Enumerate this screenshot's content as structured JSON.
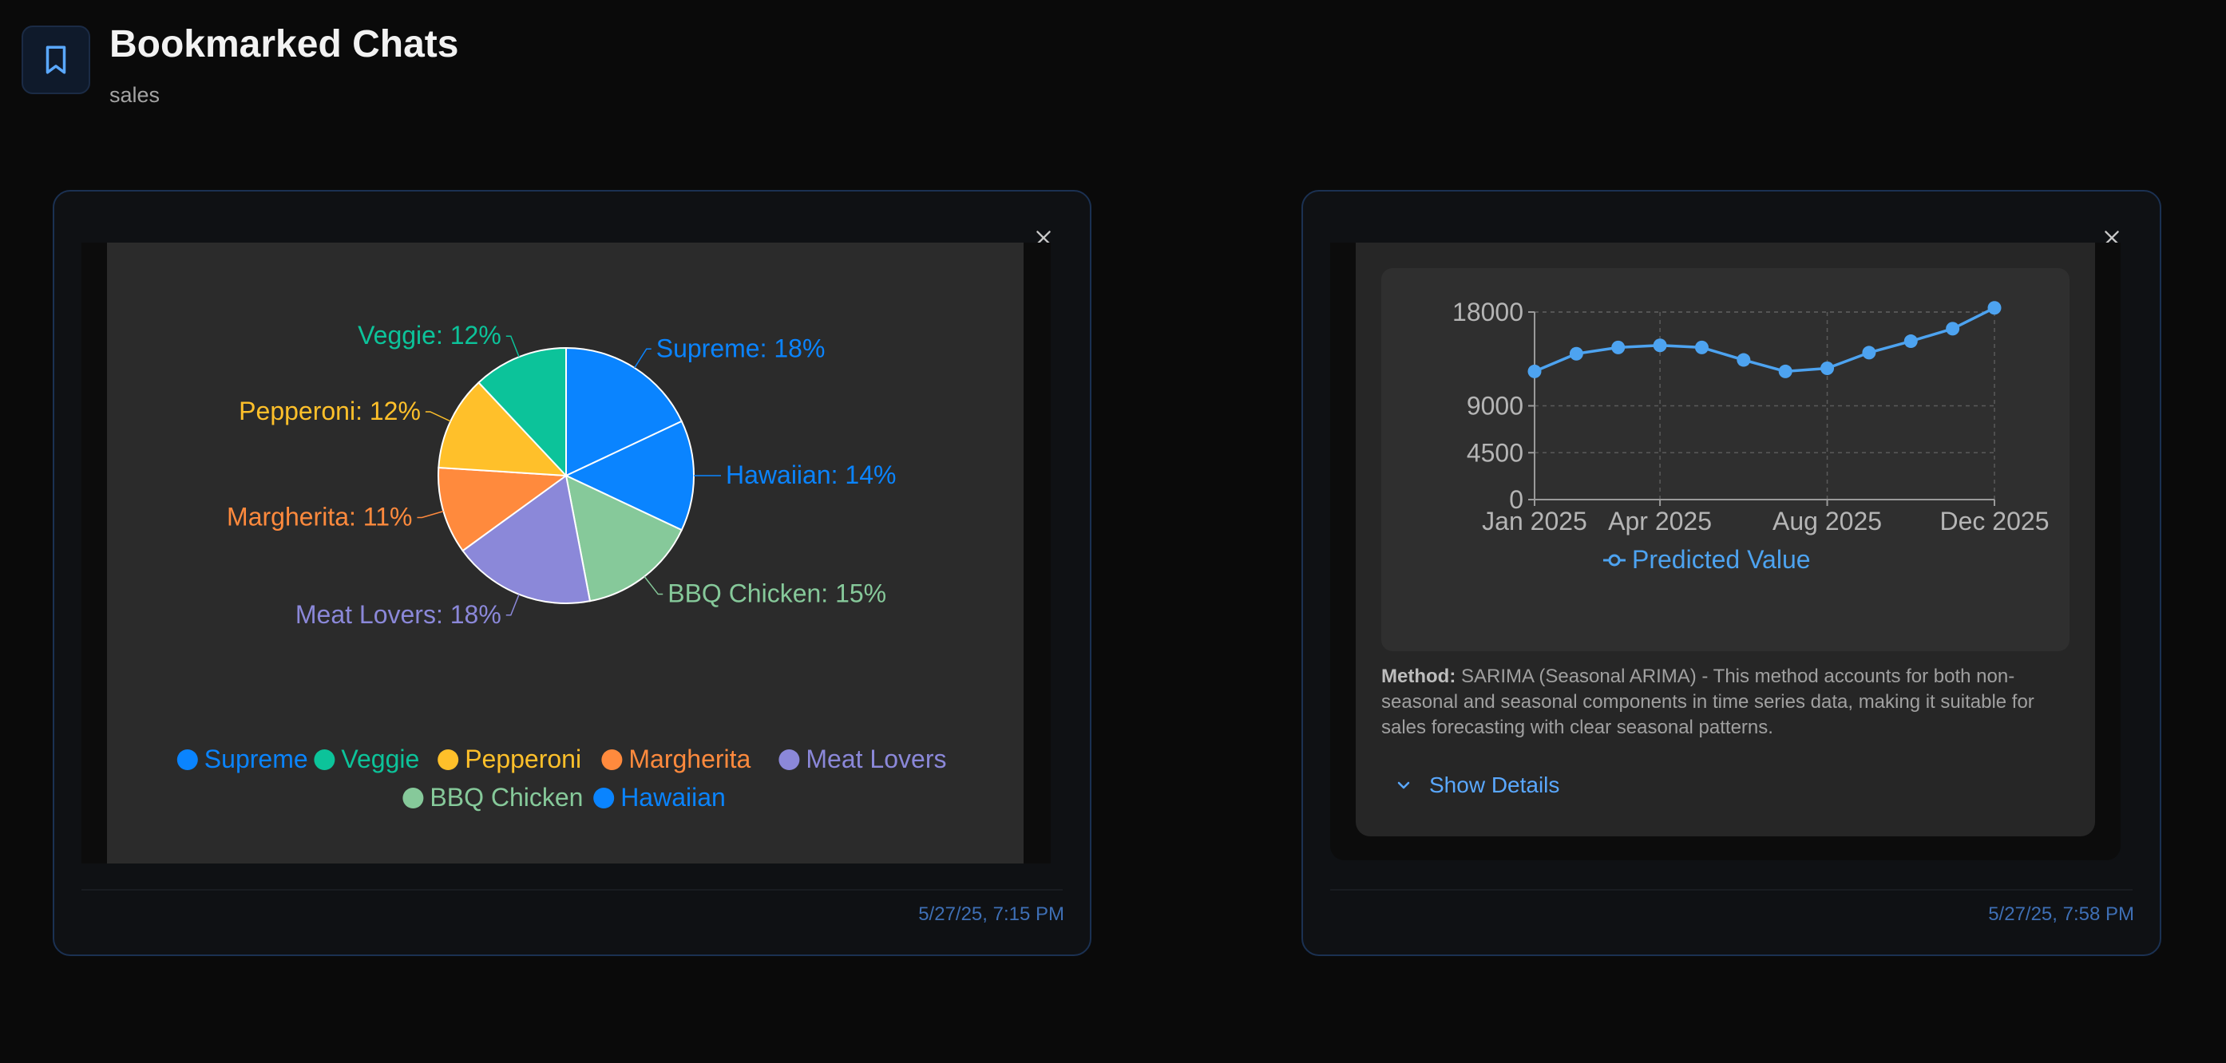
{
  "header": {
    "title": "Bookmarked Chats",
    "subtitle": "sales",
    "icon": "bookmark-icon"
  },
  "cards": [
    {
      "timestamp": "5/27/25, 7:15 PM",
      "chart_data": {
        "type": "pie",
        "slices": [
          {
            "name": "Supreme",
            "value": 18,
            "label": "Supreme: 18%",
            "color": "#0a84ff"
          },
          {
            "name": "Hawaiian",
            "value": 14,
            "label": "Hawaiian: 14%",
            "color": "#0a84ff"
          },
          {
            "name": "BBQ Chicken",
            "value": 15,
            "label": "BBQ Chicken: 15%",
            "color": "#86c99a"
          },
          {
            "name": "Meat Lovers",
            "value": 18,
            "label": "Meat Lovers: 18%",
            "color": "#8b88d9"
          },
          {
            "name": "Margherita",
            "value": 11,
            "label": "Margherita: 11%",
            "color": "#ff8a3d"
          },
          {
            "name": "Pepperoni",
            "value": 12,
            "label": "Pepperoni: 12%",
            "color": "#ffc02a"
          },
          {
            "name": "Veggie",
            "value": 12,
            "label": "Veggie: 12%",
            "color": "#0cc39a"
          }
        ],
        "legend": [
          "Supreme",
          "Veggie",
          "Pepperoni",
          "Margherita",
          "Meat Lovers",
          "BBQ Chicken",
          "Hawaiian"
        ],
        "legend_placement": "bottom"
      }
    },
    {
      "timestamp": "5/27/25, 7:58 PM",
      "chart_data": {
        "type": "line",
        "x": [
          "2025-01",
          "2025-02",
          "2025-03",
          "2025-04",
          "2025-05",
          "2025-06",
          "2025-07",
          "2025-08",
          "2025-09",
          "2025-10",
          "2025-11",
          "2025-12"
        ],
        "x_ticks": [
          "Jan 2025",
          "Apr 2025",
          "Aug 2025",
          "Dec 2025"
        ],
        "y_ticks": [
          "0",
          "4500",
          "9000",
          "18000"
        ],
        "ylim": [
          0,
          18000
        ],
        "series": [
          {
            "name": "Predicted Value",
            "color": "#4da3f0",
            "values": [
              12300,
              14000,
              14600,
              14800,
              14600,
              13400,
              12300,
              12600,
              14100,
              15200,
              16400,
              18400
            ]
          }
        ],
        "grid": true,
        "legend_placement": "bottom"
      },
      "method_label": "Method:",
      "method_text": "SARIMA (Seasonal ARIMA) - This method accounts for both non-seasonal and seasonal components in time series data, making it suitable for sales forecasting with clear seasonal patterns.",
      "show_details_label": "Show Details"
    }
  ]
}
